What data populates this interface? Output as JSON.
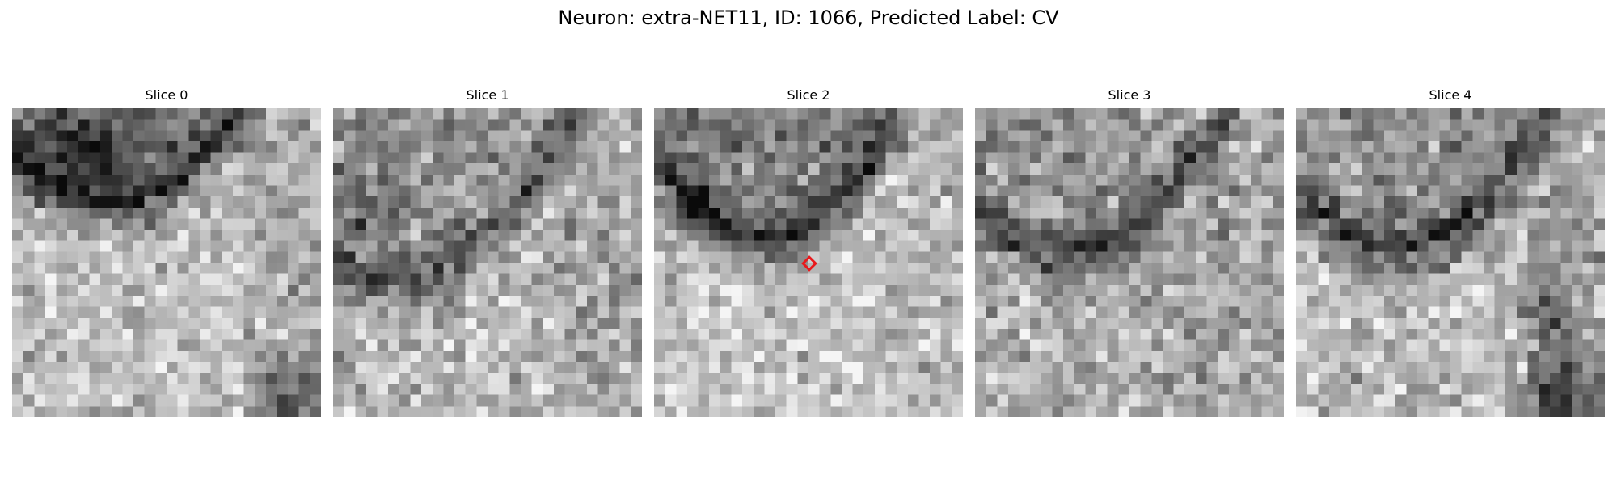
{
  "figure": {
    "title": "Neuron: extra-NET11, ID: 1066, Predicted Label: CV"
  },
  "panels": [
    {
      "title": "Slice 0"
    },
    {
      "title": "Slice 1"
    },
    {
      "title": "Slice 2"
    },
    {
      "title": "Slice 3"
    },
    {
      "title": "Slice 4"
    }
  ],
  "marker": {
    "color": "#e8191c",
    "shape": "diamond"
  }
}
